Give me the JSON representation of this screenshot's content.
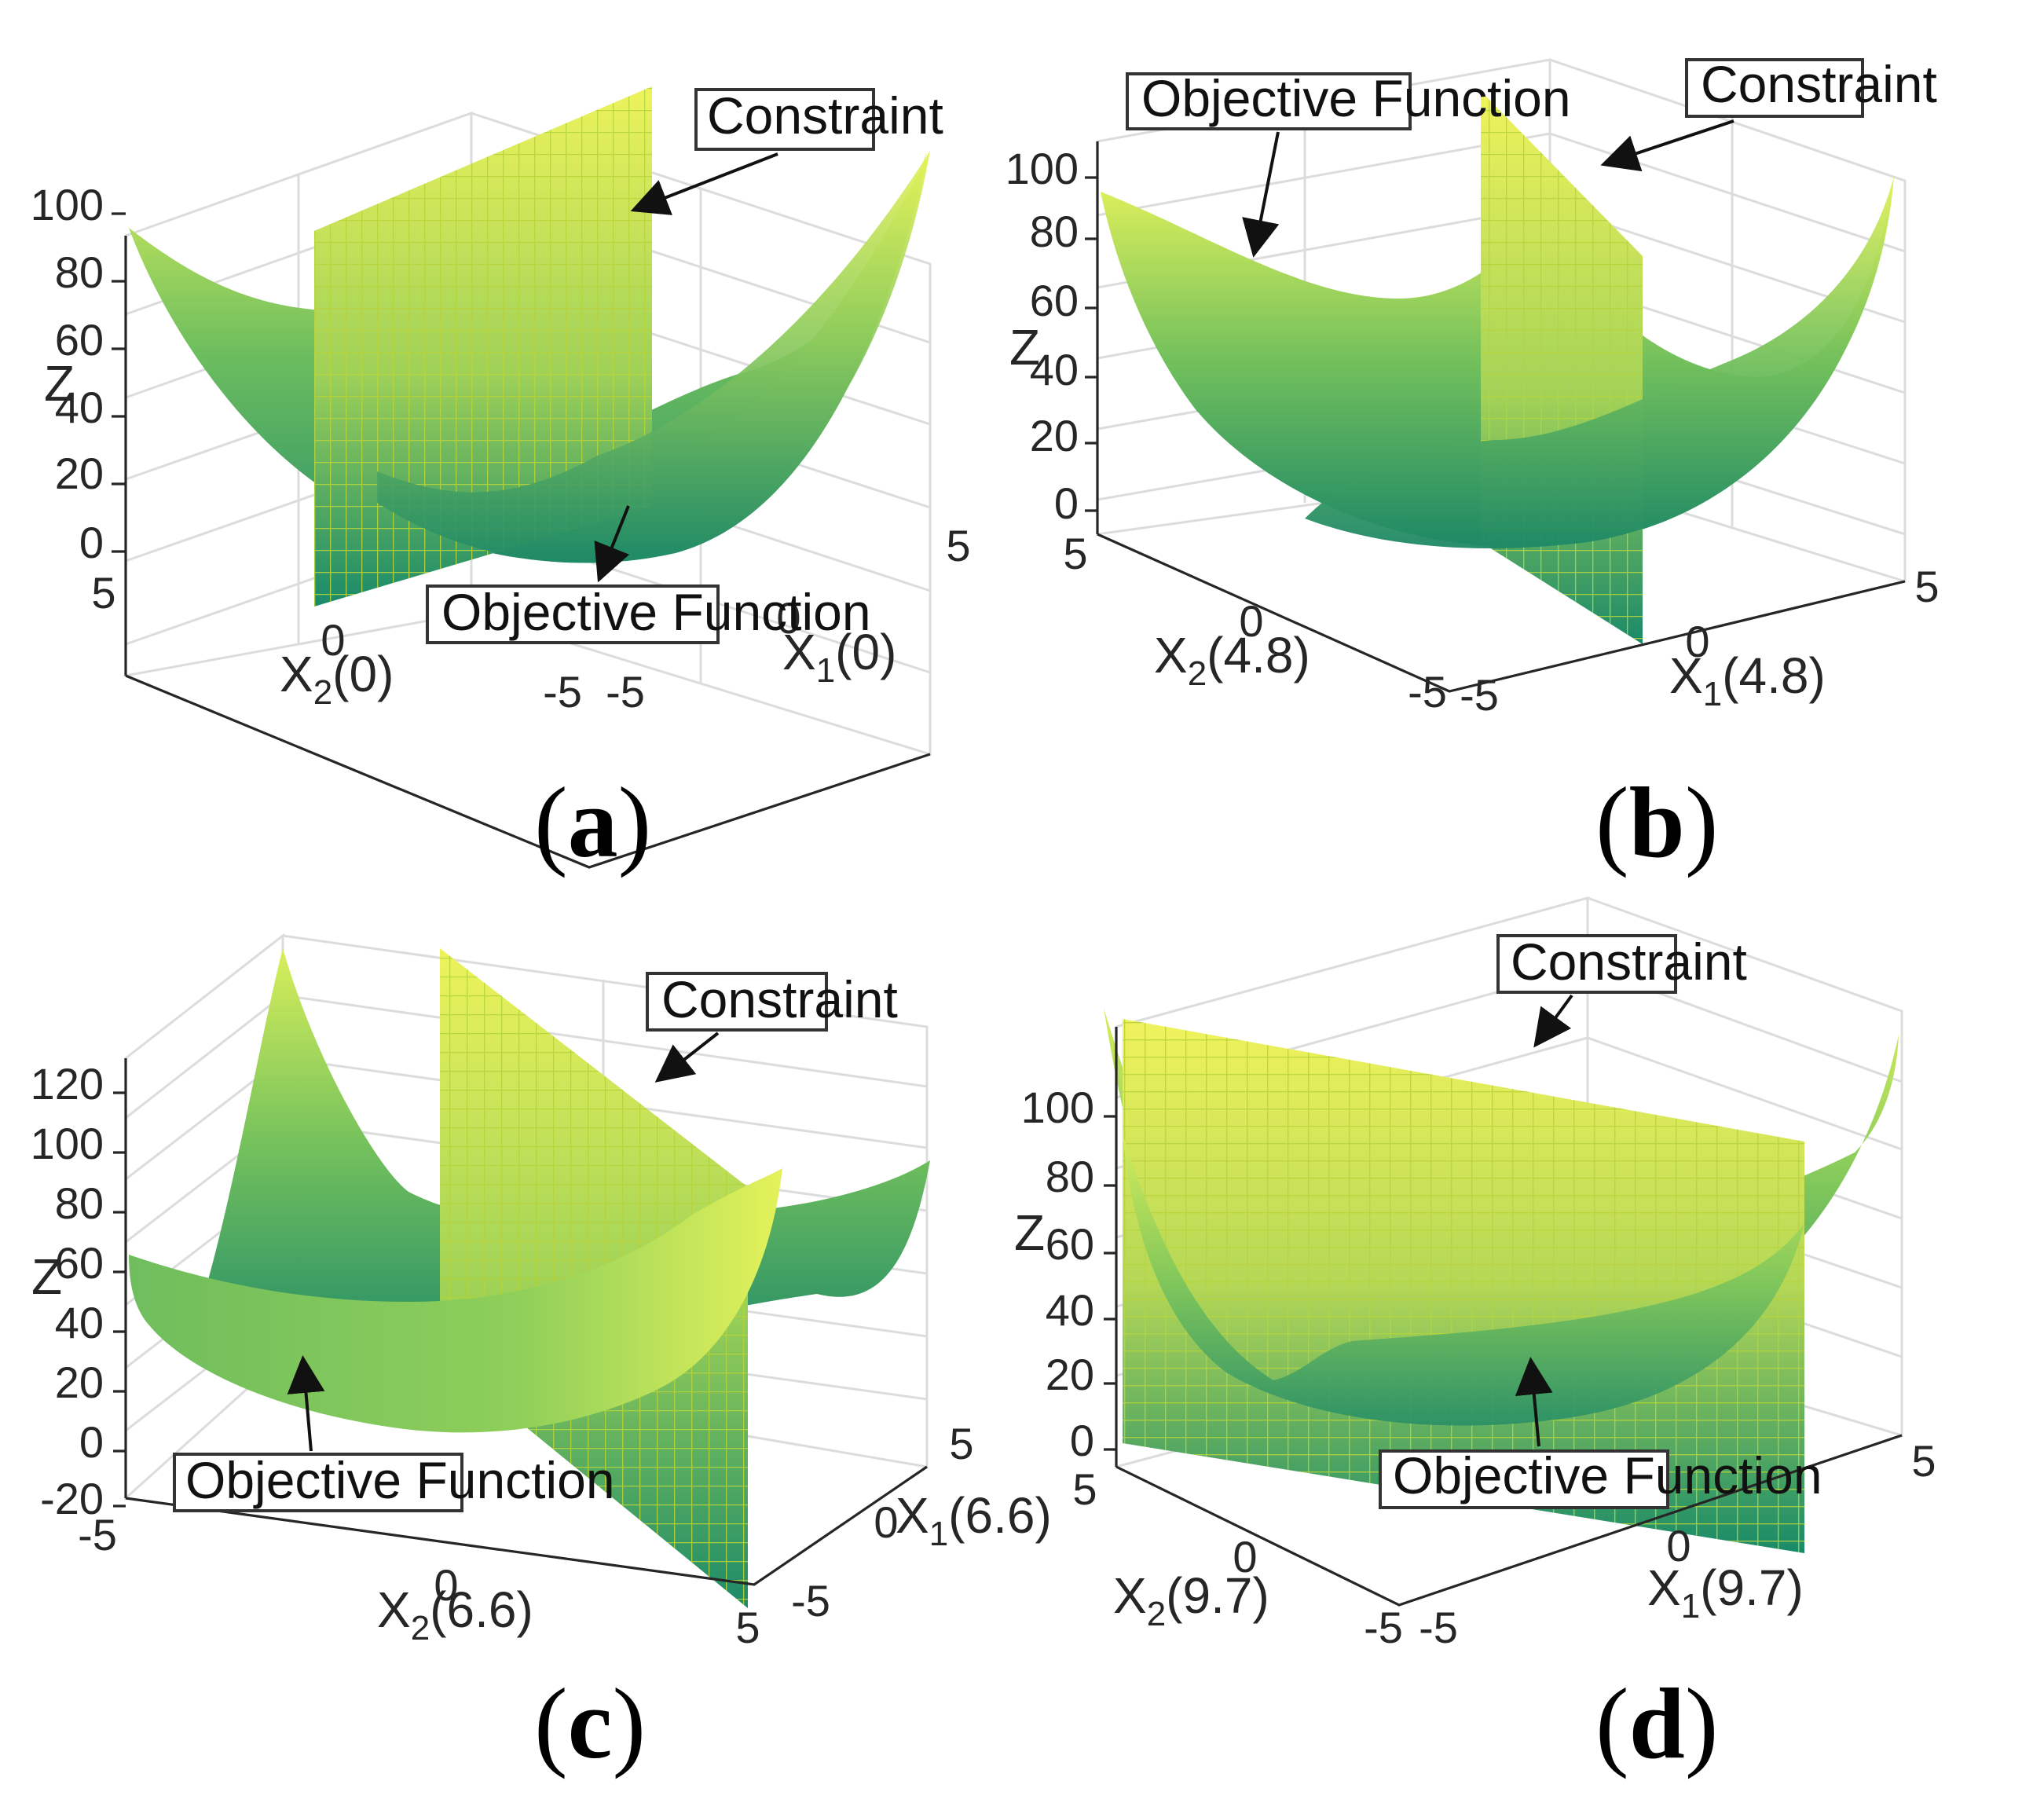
{
  "chart_data": [
    {
      "panel": "a",
      "caption_letter": "a",
      "type": "surface3d",
      "zlabel": "Z",
      "xlabel": {
        "base": "X",
        "sub": "1",
        "suffix": "(0)"
      },
      "ylabel": {
        "base": "X",
        "sub": "2",
        "suffix": "(0)"
      },
      "zticks": [
        "0",
        "20",
        "40",
        "60",
        "80",
        "100"
      ],
      "x1ticks": [
        "-5",
        "0",
        "5"
      ],
      "x2ticks": [
        "-5",
        "0",
        "5"
      ],
      "annotations": {
        "constraint": "Constraint",
        "objective": "Objective Function"
      }
    },
    {
      "panel": "b",
      "caption_letter": "b",
      "type": "surface3d",
      "zlabel": "Z",
      "xlabel": {
        "base": "X",
        "sub": "1",
        "suffix": "(4.8)"
      },
      "ylabel": {
        "base": "X",
        "sub": "2",
        "suffix": "(4.8)"
      },
      "zticks": [
        "0",
        "20",
        "40",
        "60",
        "80",
        "100"
      ],
      "x1ticks": [
        "-5",
        "0",
        "5"
      ],
      "x2ticks": [
        "-5",
        "0",
        "5"
      ],
      "annotations": {
        "constraint": "Constraint",
        "objective": "Objective Function"
      }
    },
    {
      "panel": "c",
      "caption_letter": "c",
      "type": "surface3d",
      "zlabel": "Z",
      "xlabel": {
        "base": "X",
        "sub": "1",
        "suffix": "(6.6)"
      },
      "ylabel": {
        "base": "X",
        "sub": "2",
        "suffix": "(6.6)"
      },
      "zticks": [
        "-20",
        "0",
        "20",
        "40",
        "60",
        "80",
        "100",
        "120"
      ],
      "x1ticks": [
        "-5",
        "0",
        "5"
      ],
      "x2ticks": [
        "-5",
        "0",
        "5"
      ],
      "annotations": {
        "constraint": "Constraint",
        "objective": "Objective Function"
      }
    },
    {
      "panel": "d",
      "caption_letter": "d",
      "type": "surface3d",
      "zlabel": "Z",
      "xlabel": {
        "base": "X",
        "sub": "1",
        "suffix": "(9.7)"
      },
      "ylabel": {
        "base": "X",
        "sub": "2",
        "suffix": "(9.7)"
      },
      "zticks": [
        "0",
        "20",
        "40",
        "60",
        "80",
        "100"
      ],
      "x1ticks": [
        "-5",
        "0",
        "5"
      ],
      "x2ticks": [
        "-5",
        "0",
        "5"
      ],
      "annotations": {
        "constraint": "Constraint",
        "objective": "Objective Function"
      }
    }
  ],
  "colors": {
    "surface_low": "#1e8a68",
    "surface_mid": "#6cbf5c",
    "surface_high": "#e3f25a",
    "mesh_line": "#b9d83a"
  }
}
